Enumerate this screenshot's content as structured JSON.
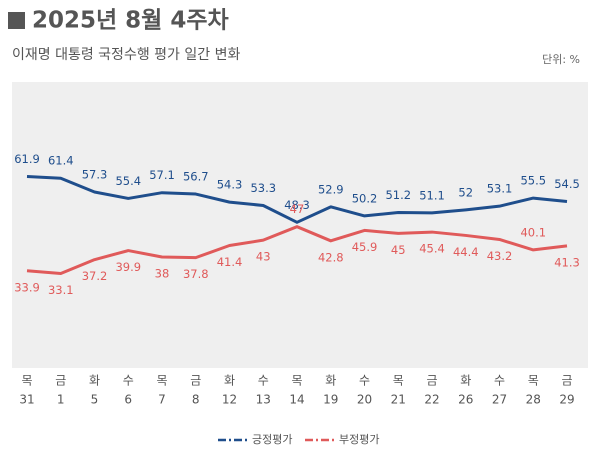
{
  "chart_data": {
    "type": "line",
    "title": "2025년 8월 4주차",
    "subtitle": "이재명 대통령 국정수행 평가 일간 변화",
    "unit": "단위: %",
    "weekdays": [
      "목",
      "금",
      "화",
      "수",
      "목",
      "금",
      "화",
      "수",
      "목",
      "화",
      "수",
      "목",
      "금",
      "화",
      "수",
      "목",
      "금"
    ],
    "categories": [
      "31",
      "1",
      "5",
      "6",
      "7",
      "8",
      "12",
      "13",
      "14",
      "19",
      "20",
      "21",
      "22",
      "26",
      "27",
      "28",
      "29"
    ],
    "series": [
      {
        "name": "긍정평가",
        "color": "#1f4e8c",
        "values": [
          61.9,
          61.4,
          57.3,
          55.4,
          57.1,
          56.7,
          54.3,
          53.3,
          48.3,
          52.9,
          50.2,
          51.2,
          51.1,
          52.0,
          53.1,
          55.5,
          54.5
        ]
      },
      {
        "name": "부정평가",
        "color": "#e05a5a",
        "values": [
          33.9,
          33.1,
          37.2,
          39.9,
          38.0,
          37.8,
          41.4,
          43.0,
          47.0,
          42.8,
          45.9,
          45.0,
          45.4,
          44.4,
          43.2,
          40.1,
          41.3
        ]
      }
    ],
    "ylim": [
      5,
      90
    ],
    "legend": "bottom"
  }
}
